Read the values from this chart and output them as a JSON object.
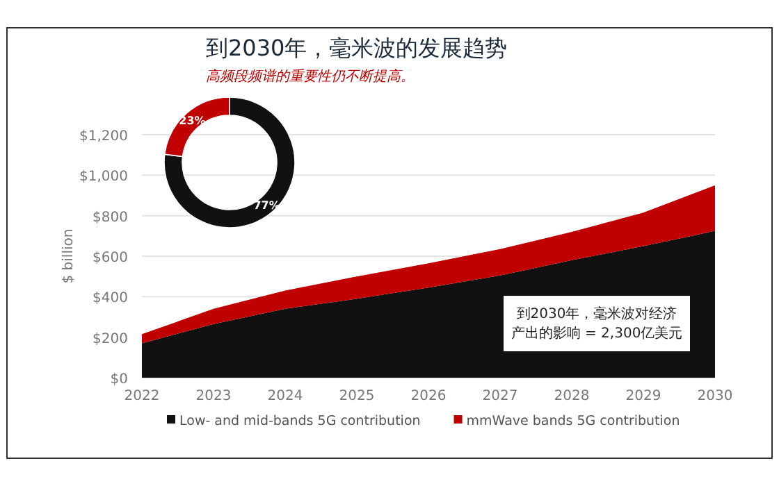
{
  "chart_data": [
    {
      "type": "area",
      "title": "到2030年，毫米波的发展趋势",
      "subtitle": "高频段频谱的重要性仍不断提高。",
      "ylabel": "$ billion",
      "categories": [
        "2022",
        "2023",
        "2024",
        "2025",
        "2026",
        "2027",
        "2028",
        "2029",
        "2030"
      ],
      "stacked": true,
      "series": [
        {
          "name": "Low- and mid-bands 5G contribution",
          "color": "#111111",
          "values": [
            170,
            265,
            340,
            390,
            445,
            505,
            580,
            650,
            725
          ]
        },
        {
          "name": "mmWave bands 5G contribution",
          "color": "#c00000",
          "values": [
            45,
            75,
            90,
            110,
            120,
            130,
            140,
            165,
            225
          ]
        }
      ],
      "ylim": [
        0,
        1200
      ],
      "yticks": [
        {
          "value": 0,
          "label": "$0"
        },
        {
          "value": 200,
          "label": "$200"
        },
        {
          "value": 400,
          "label": "$400"
        },
        {
          "value": 600,
          "label": "$600"
        },
        {
          "value": 800,
          "label": "$800"
        },
        {
          "value": 1000,
          "label": "$1,000"
        },
        {
          "value": 1200,
          "label": "$1,200"
        }
      ],
      "grid": "y",
      "legend": "bottom",
      "annotations": [
        "到2030年，毫米波对经济产出的影响 = 2,300亿美元"
      ]
    },
    {
      "type": "donut",
      "categories": [
        null,
        null
      ],
      "values": [
        77,
        23
      ],
      "colors": [
        "#111111",
        "#c00000"
      ],
      "value_labels": [
        "77%",
        "23%"
      ]
    }
  ]
}
